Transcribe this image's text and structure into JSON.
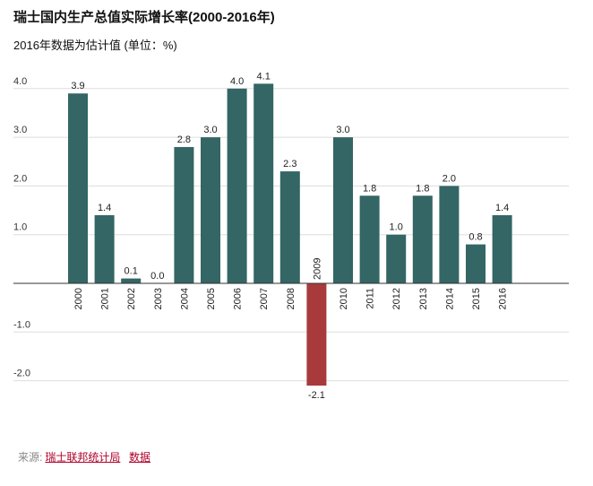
{
  "chart_data": {
    "type": "bar",
    "title": "瑞士国内生产总值实际增长率(2000-2016年)",
    "subtitle": "2016年数据为估计值 (单位：%)",
    "categories": [
      "2000",
      "2001",
      "2002",
      "2003",
      "2004",
      "2005",
      "2006",
      "2007",
      "2008",
      "2009",
      "2010",
      "2011",
      "2012",
      "2013",
      "2014",
      "2015",
      "2016"
    ],
    "values": [
      3.9,
      1.4,
      0.1,
      0.0,
      2.8,
      3.0,
      4.0,
      4.1,
      2.3,
      -2.1,
      3.0,
      1.8,
      1.0,
      1.8,
      2.0,
      0.8,
      1.4
    ],
    "value_labels": [
      "3.9",
      "1.4",
      "0.1",
      "0.0",
      "2.8",
      "3.0",
      "4.0",
      "4.1",
      "2.3",
      "-2.1",
      "3.0",
      "1.8",
      "1.0",
      "1.8",
      "2.0",
      "0.8",
      "1.4"
    ],
    "yticks": [
      4,
      3,
      2,
      1,
      -1,
      -2
    ],
    "ytick_labels": [
      "4.0",
      "3.0",
      "2.0",
      "1.0",
      "-1.0",
      "-2.0"
    ],
    "ylim": [
      -2.2,
      4.3
    ],
    "grid": true,
    "colors": {
      "positive": "#336664",
      "negative": "#a93a3b"
    }
  },
  "source": {
    "label": "来源:",
    "link1": "瑞士联邦统计局",
    "link2": "数据"
  }
}
